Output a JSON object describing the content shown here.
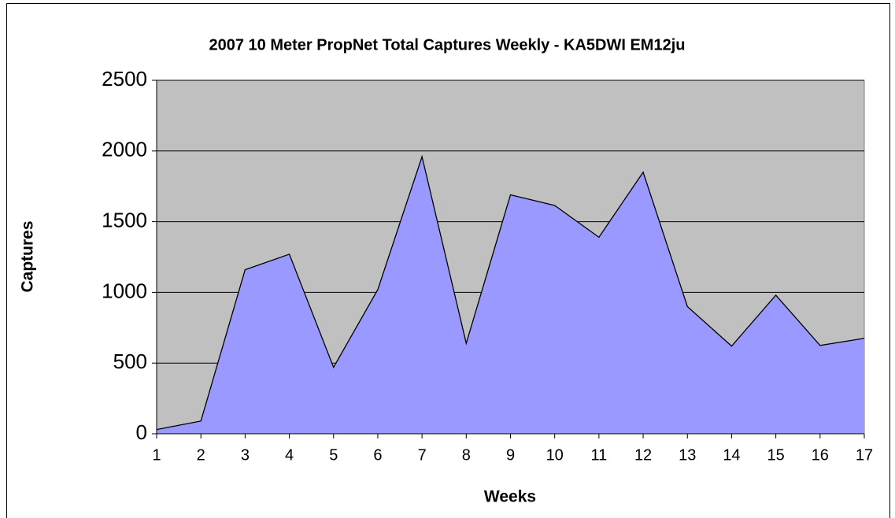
{
  "chart_data": {
    "type": "area",
    "title": "2007 10 Meter PropNet Total Captures Weekly - KA5DWI EM12ju",
    "x_label": "Weeks",
    "y_label": "Captures",
    "categories": [
      "1",
      "2",
      "3",
      "4",
      "5",
      "6",
      "7",
      "8",
      "9",
      "10",
      "11",
      "12",
      "13",
      "14",
      "15",
      "16",
      "17"
    ],
    "values": [
      30,
      90,
      1160,
      1270,
      470,
      1020,
      1960,
      640,
      1690,
      1615,
      1390,
      1850,
      900,
      620,
      980,
      625,
      675
    ],
    "color": "#9999ff",
    "line_color": "#000000",
    "plot_background": "#c0c0c0",
    "ylim": [
      0,
      2500
    ],
    "yticks": [
      0,
      500,
      1000,
      1500,
      2000,
      2500
    ],
    "grid": true
  }
}
